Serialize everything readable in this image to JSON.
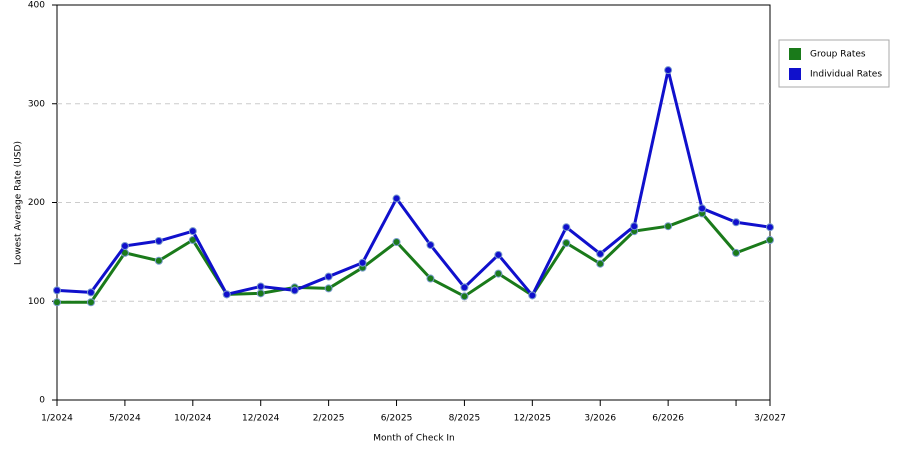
{
  "chart_data": {
    "type": "line",
    "x_label": "Month of Check In",
    "y_label": "Lowest Average Rate (USD)",
    "categories": [
      "1/2024",
      null,
      "5/2024",
      null,
      "10/2024",
      null,
      "12/2024",
      null,
      "2/2025",
      null,
      "6/2025",
      null,
      "8/2025",
      null,
      "12/2025",
      null,
      "3/2026",
      null,
      "6/2026",
      null,
      null,
      "3/2027"
    ],
    "series": [
      {
        "name": "Group Rates",
        "color": "#1a7a1a",
        "values": [
          99,
          99,
          149,
          141,
          162,
          107,
          108,
          114,
          113,
          134,
          160,
          123,
          105,
          128,
          106,
          159,
          138,
          171,
          176,
          189,
          149,
          162
        ]
      },
      {
        "name": "Individual Rates",
        "color": "#1010cc",
        "values": [
          111,
          109,
          156,
          161,
          171,
          107,
          115,
          111,
          125,
          139,
          204,
          157,
          114,
          147,
          106,
          175,
          148,
          176,
          334,
          194,
          180,
          175
        ]
      }
    ],
    "ylim": [
      0,
      400
    ],
    "yticks": [
      0,
      100,
      200,
      300,
      400
    ],
    "grid": true,
    "legend": "right"
  }
}
